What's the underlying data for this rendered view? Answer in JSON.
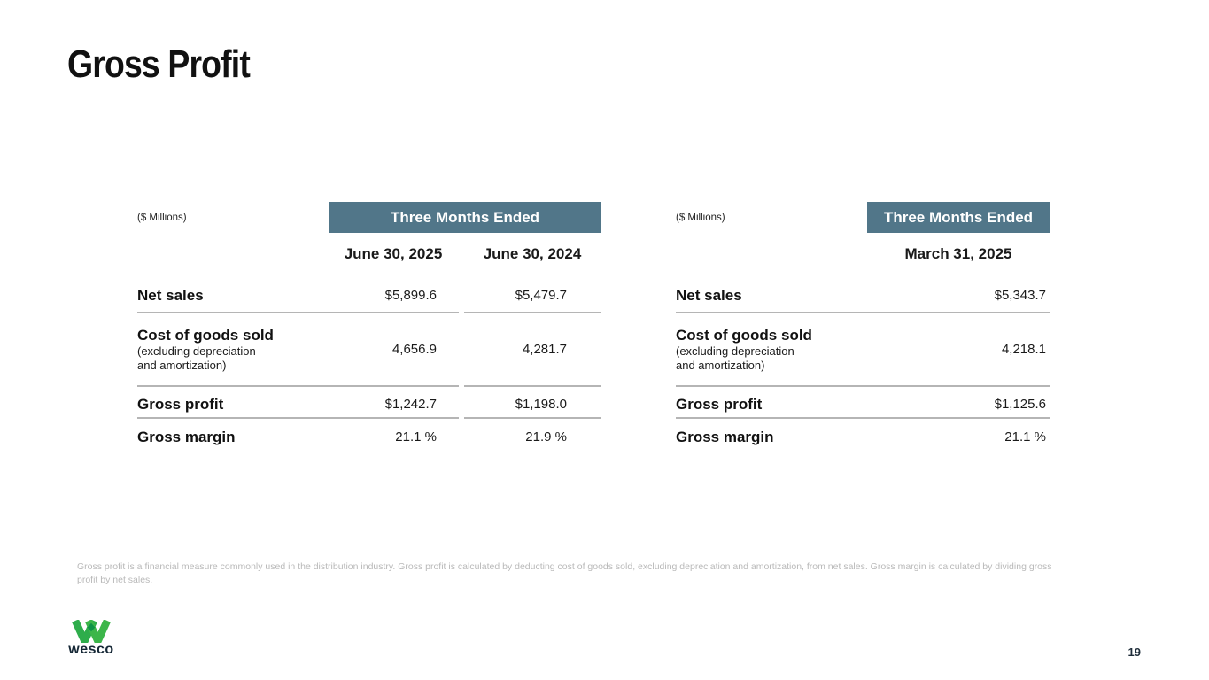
{
  "slide": {
    "title": "Gross Profit",
    "footnote": "Gross profit is a financial measure commonly used in the distribution industry. Gross profit is calculated by deducting cost of goods sold, excluding depreciation and amortization, from net sales. Gross margin is calculated by dividing gross profit by net sales.",
    "page_number": "19",
    "logo_text": "wesco"
  },
  "colors": {
    "period_header_bg": "#517689",
    "period_header_text": "#ffffff",
    "table_rule": "#b5b5b5",
    "footnote_text": "#b9b9b9",
    "logo_green_left": "#2ead4b",
    "logo_green_right": "#3cb64a",
    "logo_green_overlap": "#0e9447",
    "logo_wordmark": "#162836"
  },
  "left_table": {
    "units_label": "($ Millions)",
    "period_header": "Three Months Ended",
    "columns": [
      "June 30, 2025",
      "June 30, 2024"
    ],
    "rows": [
      {
        "label": "Net sales",
        "sublabel": "",
        "values": [
          "$5,899.6",
          "$5,479.7"
        ]
      },
      {
        "label": "Cost of goods sold",
        "sublabel": "(excluding depreciation and amortization)",
        "values": [
          "4,656.9",
          "4,281.7"
        ]
      },
      {
        "label": "Gross profit",
        "sublabel": "",
        "values": [
          "$1,242.7",
          "$1,198.0"
        ]
      },
      {
        "label": "Gross margin",
        "sublabel": "",
        "values": [
          "21.1 %",
          "21.9 %"
        ]
      }
    ]
  },
  "right_table": {
    "units_label": "($ Millions)",
    "period_header": "Three Months Ended",
    "columns": [
      "March 31, 2025"
    ],
    "rows": [
      {
        "label": "Net sales",
        "sublabel": "",
        "values": [
          "$5,343.7"
        ]
      },
      {
        "label": "Cost of goods sold",
        "sublabel": "(excluding depreciation and amortization)",
        "values": [
          "4,218.1"
        ]
      },
      {
        "label": "Gross profit",
        "sublabel": "",
        "values": [
          "$1,125.6"
        ]
      },
      {
        "label": "Gross margin",
        "sublabel": "",
        "values": [
          "21.1 %"
        ]
      }
    ]
  }
}
